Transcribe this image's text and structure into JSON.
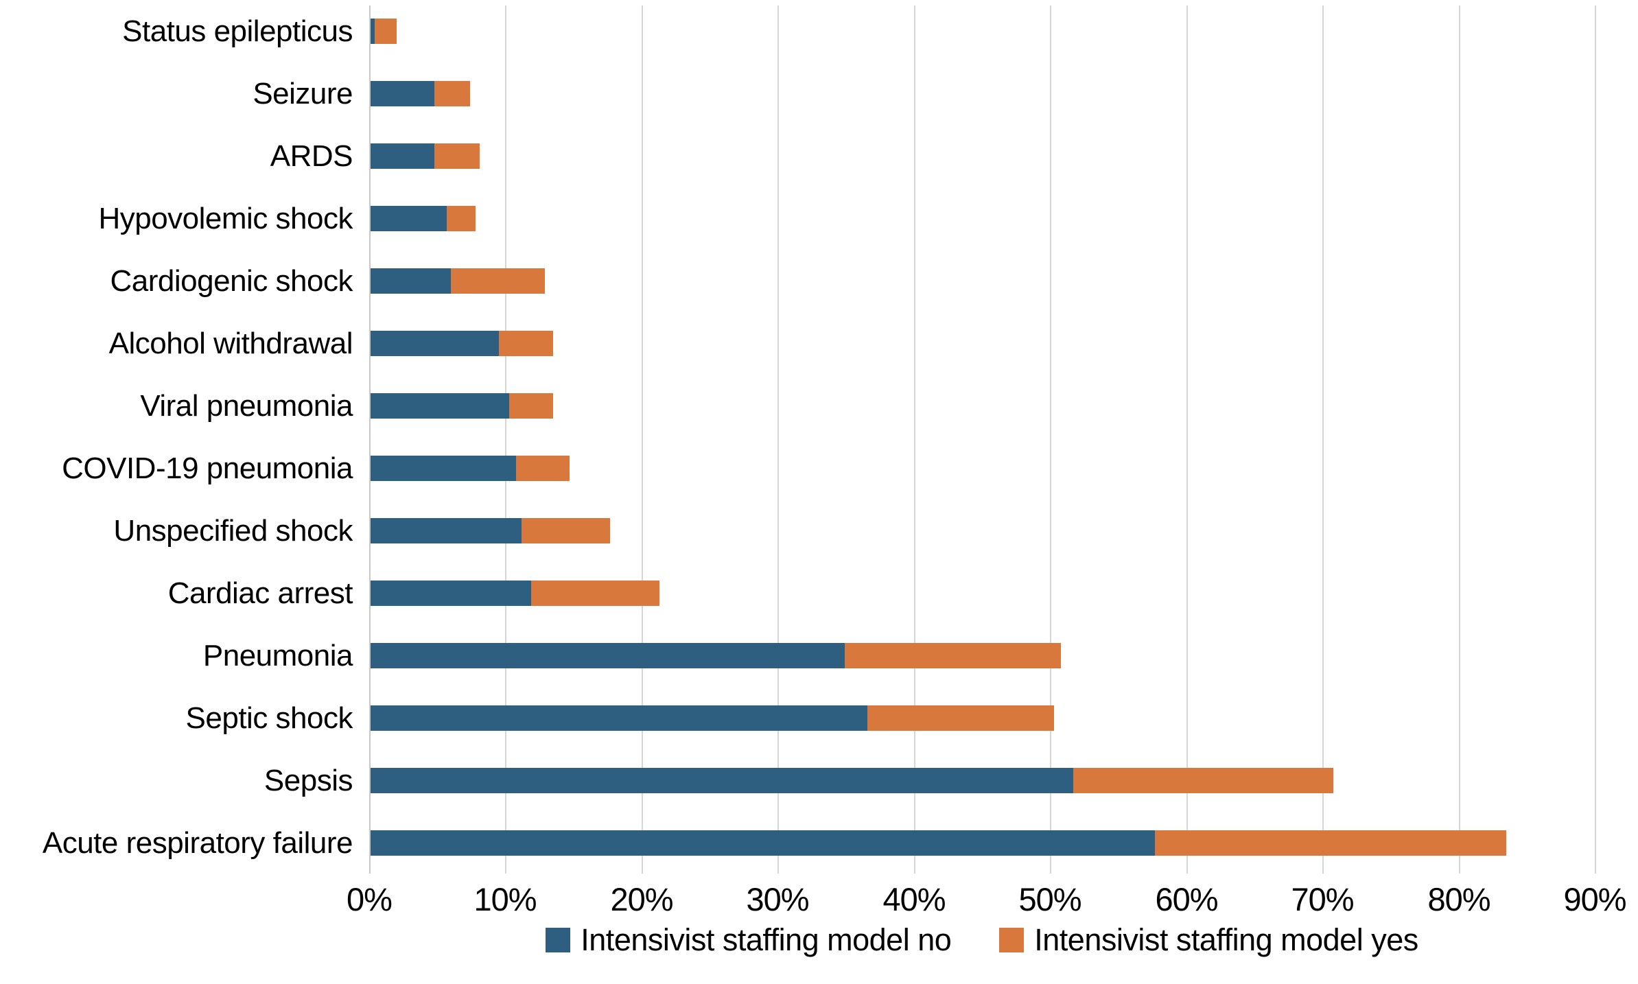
{
  "chart_data": {
    "type": "bar",
    "orientation": "horizontal",
    "stacked": true,
    "title": "",
    "categories": [
      "Status epilepticus",
      "Seizure",
      "ARDS",
      "Hypovolemic shock",
      "Cardiogenic shock",
      "Alcohol withdrawal",
      "Viral pneumonia",
      "COVID-19 pneumonia",
      "Unspecified shock",
      "Cardiac arrest",
      "Pneumonia",
      "Septic shock",
      "Sepsis",
      "Acute respiratory failure"
    ],
    "series": [
      {
        "name": "Intensivist staffing model no",
        "color": "#2E5F80",
        "values": [
          0.3,
          4.7,
          4.7,
          5.6,
          5.9,
          9.4,
          10.2,
          10.7,
          11.1,
          11.8,
          34.8,
          36.5,
          51.6,
          57.6
        ]
      },
      {
        "name": "Intensivist staffing model yes",
        "color": "#D9783C",
        "values": [
          1.6,
          2.6,
          3.3,
          2.1,
          6.9,
          4.0,
          3.2,
          3.9,
          6.5,
          9.4,
          15.9,
          13.7,
          19.1,
          25.8
        ]
      }
    ],
    "x_axis": {
      "min": 0,
      "max": 90,
      "tick_step": 10,
      "unit": "%",
      "tick_labels": [
        "0%",
        "10%",
        "20%",
        "30%",
        "40%",
        "50%",
        "60%",
        "70%",
        "80%",
        "90%"
      ]
    },
    "y_axis": {
      "label": ""
    },
    "grid": true,
    "legend_position": "bottom",
    "colors": {
      "gridline": "#D6D6D6",
      "axis_line": "#C9C9C9",
      "text": "#000000",
      "background": "#FFFFFF"
    }
  }
}
